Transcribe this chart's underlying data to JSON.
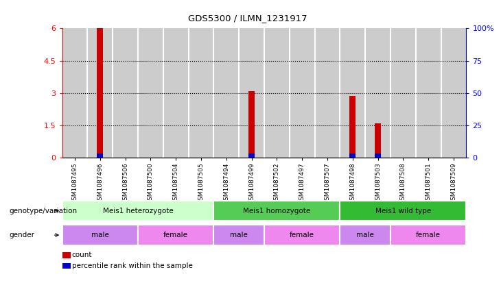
{
  "title": "GDS5300 / ILMN_1231917",
  "samples": [
    "GSM1087495",
    "GSM1087496",
    "GSM1087506",
    "GSM1087500",
    "GSM1087504",
    "GSM1087505",
    "GSM1087494",
    "GSM1087499",
    "GSM1087502",
    "GSM1087497",
    "GSM1087507",
    "GSM1087498",
    "GSM1087503",
    "GSM1087508",
    "GSM1087501",
    "GSM1087509"
  ],
  "count_values": [
    0,
    6.0,
    0,
    0,
    0,
    0,
    0,
    3.1,
    0,
    0,
    0,
    2.85,
    1.6,
    0,
    0,
    0
  ],
  "percentile_values": [
    0,
    0.18,
    0,
    0,
    0,
    0,
    0,
    0.18,
    0,
    0,
    0,
    0.18,
    0.18,
    0,
    0,
    0
  ],
  "ylim_left": [
    0,
    6
  ],
  "ylim_right": [
    0,
    100
  ],
  "yticks_left": [
    0,
    1.5,
    3.0,
    4.5,
    6.0
  ],
  "yticks_left_labels": [
    "0",
    "1.5",
    "3",
    "4.5",
    "6"
  ],
  "yticks_right": [
    0,
    25,
    50,
    75,
    100
  ],
  "yticks_right_labels": [
    "0",
    "25",
    "50",
    "75",
    "100%"
  ],
  "bar_color_red": "#cc0000",
  "bar_color_blue": "#0000cc",
  "genotype_groups": [
    {
      "label": "Meis1 heterozygote",
      "start": 0,
      "end": 5,
      "color": "#ccffcc"
    },
    {
      "label": "Meis1 homozygote",
      "start": 6,
      "end": 10,
      "color": "#55cc55"
    },
    {
      "label": "Meis1 wild type",
      "start": 11,
      "end": 15,
      "color": "#33bb33"
    }
  ],
  "gender_groups": [
    {
      "label": "male",
      "start": 0,
      "end": 2,
      "color": "#cc88ee"
    },
    {
      "label": "female",
      "start": 3,
      "end": 5,
      "color": "#ee88ee"
    },
    {
      "label": "male",
      "start": 6,
      "end": 7,
      "color": "#cc88ee"
    },
    {
      "label": "female",
      "start": 8,
      "end": 10,
      "color": "#ee88ee"
    },
    {
      "label": "male",
      "start": 11,
      "end": 12,
      "color": "#cc88ee"
    },
    {
      "label": "female",
      "start": 13,
      "end": 15,
      "color": "#ee88ee"
    }
  ],
  "legend_count_label": "count",
  "legend_pct_label": "percentile rank within the sample",
  "genotype_label": "genotype/variation",
  "gender_label": "gender",
  "bar_width": 0.25,
  "sample_bg_color": "#cccccc",
  "bg_color": "#ffffff"
}
